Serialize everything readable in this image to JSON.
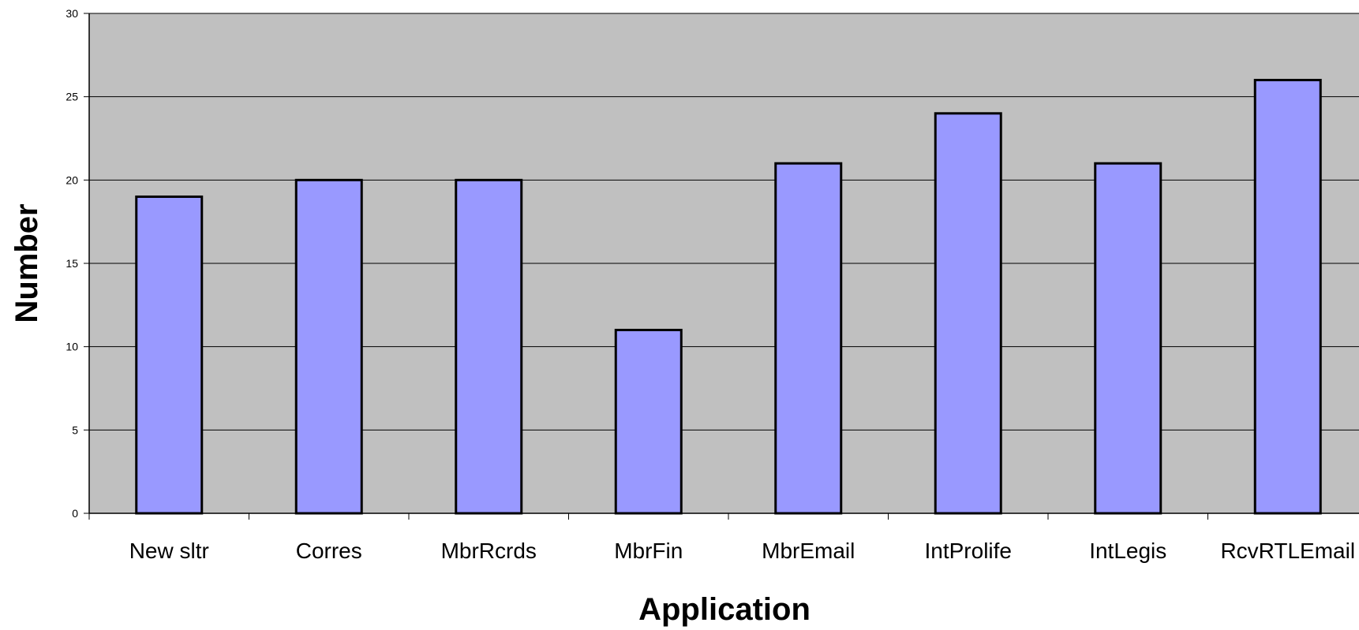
{
  "chart_data": {
    "type": "bar",
    "title": "",
    "xlabel": "Application",
    "ylabel": "Number",
    "categories": [
      "New sltr",
      "Corres",
      "MbrRcrds",
      "MbrFin",
      "MbrEmail",
      "IntProlife",
      "IntLegis",
      "RcvRTLEmail"
    ],
    "values": [
      19,
      20,
      20,
      11,
      21,
      24,
      21,
      26
    ],
    "ylim": [
      0,
      30
    ],
    "yticks": [
      0,
      5,
      10,
      15,
      20,
      25,
      30
    ],
    "grid": true,
    "legend": "none",
    "colors": {
      "plot_background": "#c0c0c0",
      "bar_fill": "#9999ff",
      "bar_stroke": "#000000",
      "gridline": "#000000"
    }
  }
}
